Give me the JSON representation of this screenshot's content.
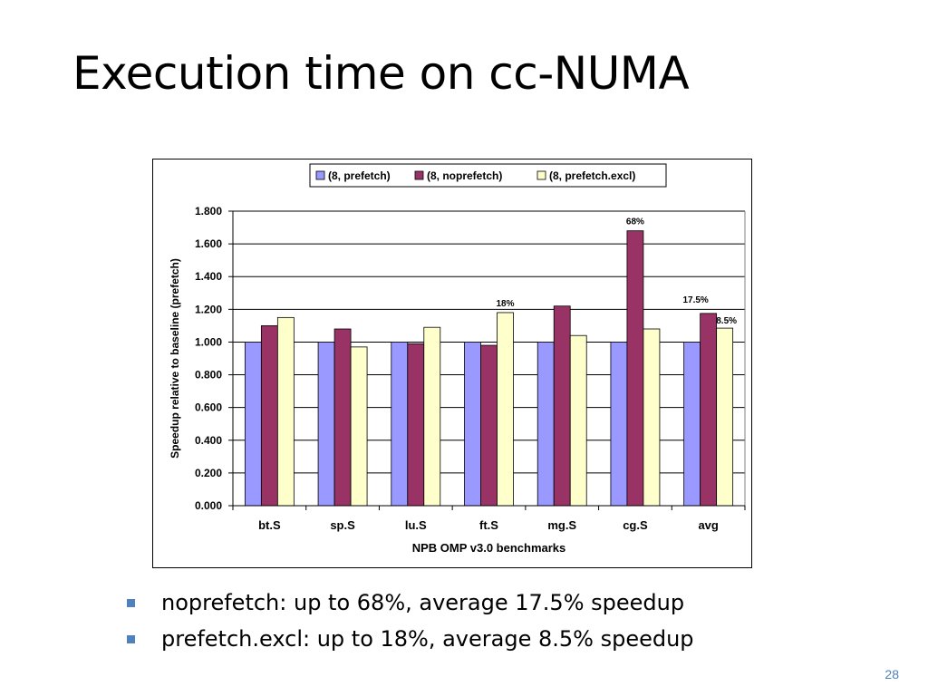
{
  "slide": {
    "title": "Execution time on cc-NUMA",
    "page_number": "28"
  },
  "bullets": [
    {
      "text": "noprefetch: up to 68%, average 17.5% speedup"
    },
    {
      "text": "prefetch.excl: up to 18%, average 8.5% speedup"
    }
  ],
  "colors": {
    "bullet": "#4f81bd",
    "page_number": "#4f81bd"
  },
  "chart_data": {
    "type": "bar",
    "title": "",
    "xlabel": "NPB OMP v3.0 benchmarks",
    "ylabel": "Speedup relative to baseline (prefetch)",
    "ylim": [
      0,
      1.8
    ],
    "yticks": [
      "0.000",
      "0.200",
      "0.400",
      "0.600",
      "0.800",
      "1.000",
      "1.200",
      "1.400",
      "1.600",
      "1.800"
    ],
    "grid": true,
    "legend_position": "top",
    "categories": [
      "bt.S",
      "sp.S",
      "lu.S",
      "ft.S",
      "mg.S",
      "cg.S",
      "avg"
    ],
    "series": [
      {
        "name": "(8, prefetch)",
        "color": "#9999ff",
        "values": [
          1.0,
          1.0,
          1.0,
          1.0,
          1.0,
          1.0,
          1.0
        ]
      },
      {
        "name": "(8, noprefetch)",
        "color": "#993366",
        "values": [
          1.1,
          1.08,
          0.99,
          0.98,
          1.22,
          1.68,
          1.175
        ]
      },
      {
        "name": "(8, prefetch.excl)",
        "color": "#ffffcc",
        "values": [
          1.15,
          0.97,
          1.09,
          1.18,
          1.04,
          1.08,
          1.085
        ]
      }
    ],
    "annotations": [
      {
        "text": "68%",
        "category": "cg.S",
        "series": 1
      },
      {
        "text": "18%",
        "category": "ft.S",
        "series": 2
      },
      {
        "text": "17.5%",
        "category": "avg",
        "series": 1
      },
      {
        "text": "8.5%",
        "category": "avg",
        "series": 2
      }
    ]
  }
}
